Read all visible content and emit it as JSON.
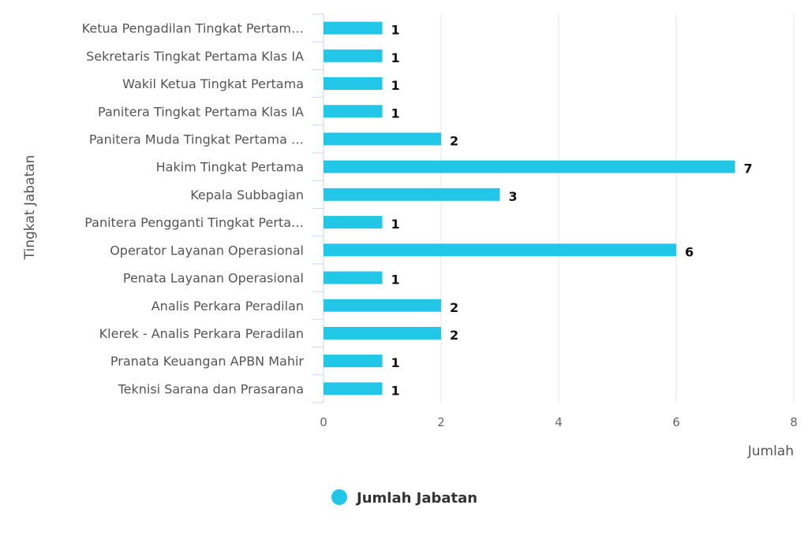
{
  "chart_data": {
    "type": "bar",
    "orientation": "horizontal",
    "categories": [
      "Ketua Pengadilan Tingkat Pertam…",
      "Sekretaris Tingkat Pertama Klas IA",
      "Wakil Ketua Tingkat Pertama",
      "Panitera Tingkat Pertama Klas IA",
      "Panitera Muda Tingkat Pertama …",
      "Hakim Tingkat Pertama",
      "Kepala Subbagian",
      "Panitera Pengganti Tingkat Perta…",
      "Operator Layanan Operasional",
      "Penata Layanan Operasional",
      "Analis Perkara Peradilan",
      "Klerek - Analis Perkara Peradilan",
      "Pranata Keuangan APBN Mahir",
      "Teknisi Sarana dan Prasarana"
    ],
    "series": [
      {
        "name": "Jumlah Jabatan",
        "color": "#22c7e8",
        "values": [
          1,
          1,
          1,
          1,
          2,
          7,
          3,
          1,
          6,
          1,
          2,
          2,
          1,
          1
        ]
      }
    ],
    "x_ticks": [
      "0",
      "2",
      "4",
      "6",
      "8"
    ],
    "xlim": [
      0,
      8
    ],
    "xlabel": "Jumlah",
    "ylabel": "Tingkat Jabatan",
    "grid": true,
    "legend": "bottom-center",
    "gridline_color": "#e6e6e6",
    "axis_color": "#ccd6eb"
  }
}
